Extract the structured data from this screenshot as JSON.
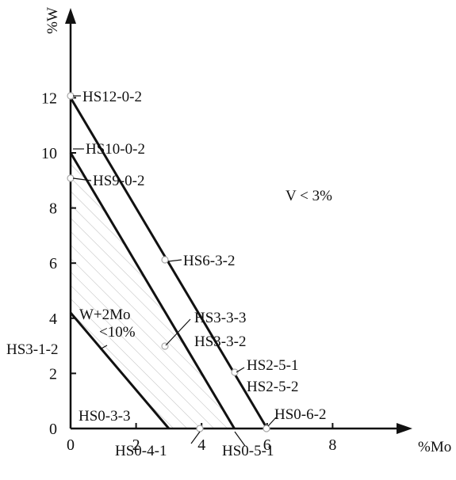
{
  "chart_data": {
    "type": "line",
    "xlabel": "%Mo",
    "ylabel": "%W",
    "xlim": [
      0,
      9
    ],
    "ylim": [
      0,
      13
    ],
    "x_ticks": [
      "0",
      "2",
      "4",
      "6",
      "8"
    ],
    "y_ticks": [
      "0",
      "2",
      "4",
      "6",
      "8",
      "10",
      "12"
    ],
    "boundary_lines": [
      {
        "id": "w2mo-12",
        "points": [
          [
            0,
            12
          ],
          [
            6,
            0
          ]
        ]
      },
      {
        "id": "w2mo-10",
        "points": [
          [
            0,
            10
          ],
          [
            5,
            0
          ]
        ]
      },
      {
        "id": "w2mo-4.2",
        "points": [
          [
            0,
            4.2
          ],
          [
            3,
            0
          ]
        ]
      }
    ],
    "hatched_region": {
      "label_lines": [
        "W+2Mo",
        "<10%"
      ],
      "vertices": [
        [
          0,
          10
        ],
        [
          5,
          0
        ],
        [
          3,
          0
        ],
        [
          0,
          4.2
        ]
      ]
    },
    "note": "V < 3%",
    "grades": [
      {
        "name": "HS12-0-2",
        "mo": 0,
        "w": 12
      },
      {
        "name": "HS10-0-2",
        "mo": 0,
        "w": 10
      },
      {
        "name": "HS9-0-2",
        "mo": 0,
        "w": 9
      },
      {
        "name": "HS6-3-2",
        "mo": 3,
        "w": 6
      },
      {
        "name": "HS3-3-3",
        "mo": 3,
        "w": 3
      },
      {
        "name": "HS3-3-2",
        "mo": 3,
        "w": 3
      },
      {
        "name": "HS3-1-2",
        "mo": 1,
        "w": 3
      },
      {
        "name": "HS2-5-1",
        "mo": 5,
        "w": 2
      },
      {
        "name": "HS2-5-2",
        "mo": 5,
        "w": 2
      },
      {
        "name": "HS0-3-3",
        "mo": 3,
        "w": 0
      },
      {
        "name": "HS0-4-1",
        "mo": 4,
        "w": 0
      },
      {
        "name": "HS0-5-1",
        "mo": 5,
        "w": 0
      },
      {
        "name": "HS0-6-2",
        "mo": 6,
        "w": 0
      }
    ]
  }
}
